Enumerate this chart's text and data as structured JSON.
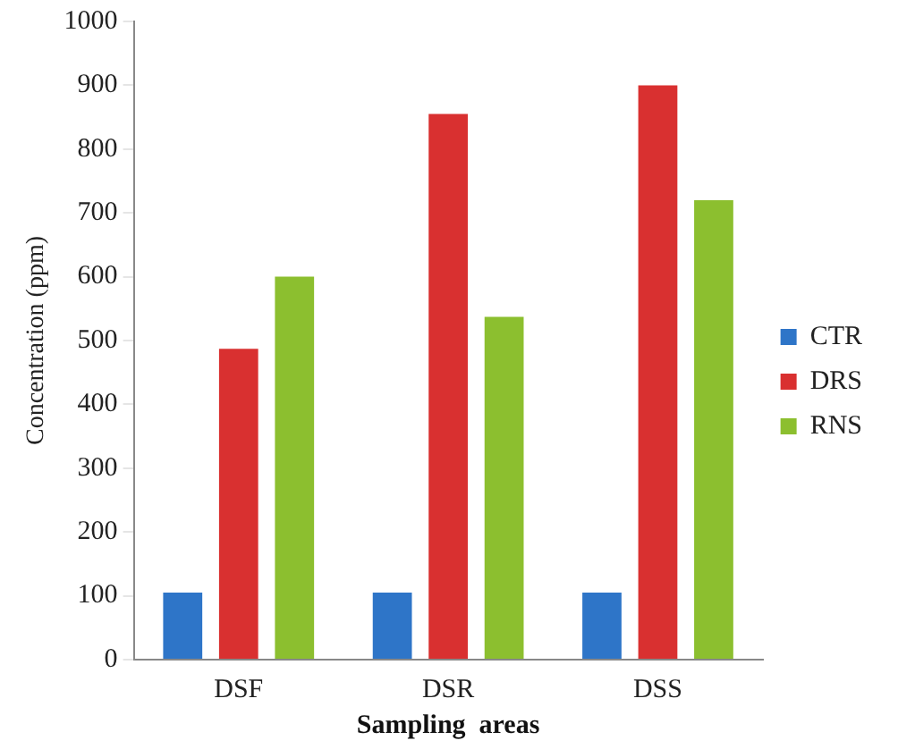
{
  "chart_data": {
    "type": "bar",
    "xlabel": "Sampling  areas",
    "ylabel": "Concentration (ppm)",
    "categories": [
      "DSF",
      "DSR",
      "DSS"
    ],
    "series": [
      {
        "name": "CTR",
        "color": "#2e75c8",
        "values": [
          105,
          105,
          105
        ]
      },
      {
        "name": "DRS",
        "color": "#d93030",
        "values": [
          487,
          855,
          900
        ]
      },
      {
        "name": "RNS",
        "color": "#8cbf2f",
        "values": [
          600,
          537,
          720
        ]
      }
    ],
    "ylim": [
      0,
      1000
    ],
    "yticks": [
      0,
      100,
      200,
      300,
      400,
      500,
      600,
      700,
      800,
      900,
      1000
    ],
    "grid": false,
    "legend": "right"
  }
}
